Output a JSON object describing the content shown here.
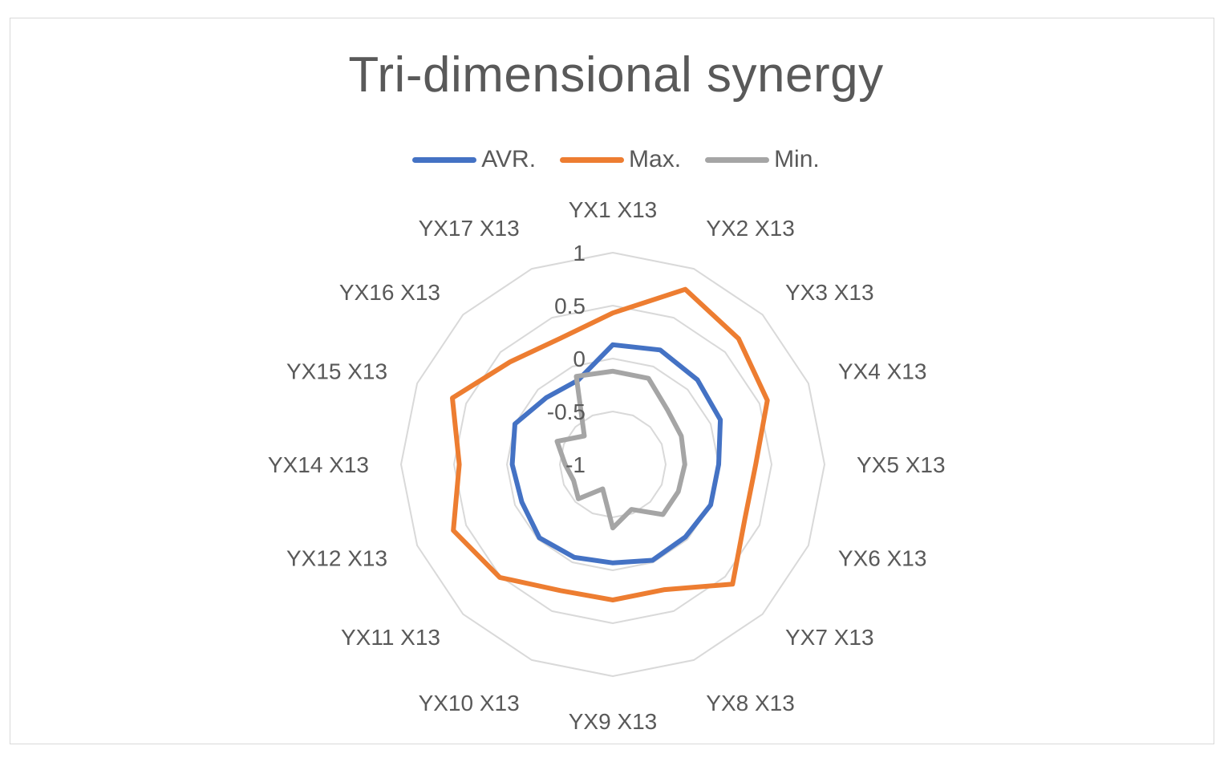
{
  "chart_data": {
    "type": "radar",
    "title": "Tri-dimensional synergy",
    "categories": [
      "YX1 X13",
      "YX2 X13",
      "YX3 X13",
      "YX4 X13",
      "YX5 X13",
      "YX6 X13",
      "YX7 X13",
      "YX8 X13",
      "YX9 X13",
      "YX10 X13",
      "YX11 X13",
      "YX12 X13",
      "YX14 X13",
      "YX15 X13",
      "YX16 X13",
      "YX17 X13"
    ],
    "rlim": [
      -1,
      1
    ],
    "ticks": [
      1,
      0.5,
      0,
      -0.5,
      -1
    ],
    "tick_labels": [
      "1",
      "0.5",
      "0",
      "-0.5",
      "-1"
    ],
    "legend_position": "top",
    "series": [
      {
        "name": "AVR.",
        "color": "#4472c4",
        "values": [
          0.13,
          0.17,
          0.13,
          0.1,
          0.0,
          0.0,
          -0.03,
          -0.02,
          -0.07,
          -0.05,
          -0.02,
          -0.07,
          -0.05,
          0.0,
          -0.11,
          -0.14
        ]
      },
      {
        "name": "Max.",
        "color": "#ed7d31",
        "values": [
          0.43,
          0.79,
          0.68,
          0.58,
          0.35,
          0.35,
          0.6,
          0.28,
          0.28,
          0.29,
          0.51,
          0.63,
          0.45,
          0.64,
          0.37,
          0.29
        ]
      },
      {
        "name": "Min.",
        "color": "#a5a5a5",
        "values": [
          -0.12,
          -0.12,
          -0.27,
          -0.3,
          -0.32,
          -0.33,
          -0.33,
          -0.54,
          -0.4,
          -0.75,
          -0.54,
          -0.6,
          -0.55,
          -0.43,
          -0.62,
          -0.1
        ]
      }
    ]
  }
}
